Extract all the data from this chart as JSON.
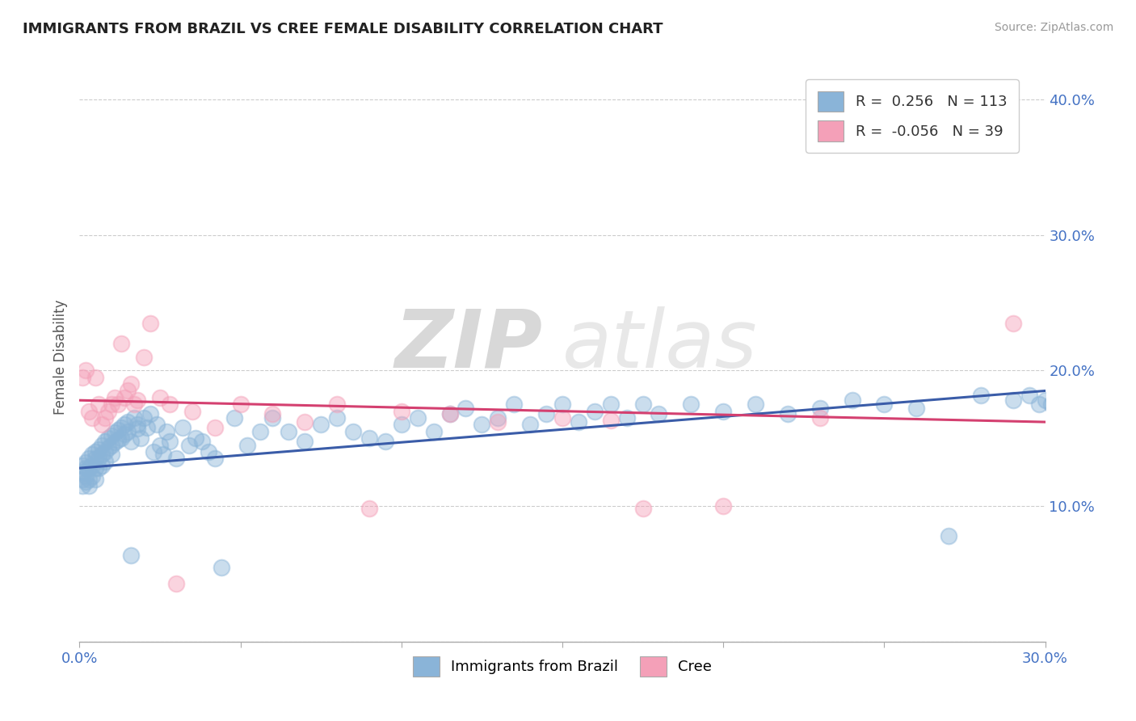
{
  "title": "IMMIGRANTS FROM BRAZIL VS CREE FEMALE DISABILITY CORRELATION CHART",
  "source": "Source: ZipAtlas.com",
  "ylabel_label": "Female Disability",
  "xlim": [
    0.0,
    0.3
  ],
  "ylim": [
    0.0,
    0.42
  ],
  "x_ticks": [
    0.0,
    0.05,
    0.1,
    0.15,
    0.2,
    0.25,
    0.3
  ],
  "y_ticks": [
    0.0,
    0.1,
    0.2,
    0.3,
    0.4
  ],
  "brazil_R": 0.256,
  "brazil_N": 113,
  "cree_R": -0.056,
  "cree_N": 39,
  "brazil_color": "#8ab4d8",
  "cree_color": "#f4a0b8",
  "brazil_line_color": "#3a5ca8",
  "cree_line_color": "#d44070",
  "grid_color": "#cccccc",
  "background_color": "#ffffff",
  "watermark_zip": "ZIP",
  "watermark_atlas": "atlas",
  "brazil_scatter_x": [
    0.001,
    0.001,
    0.001,
    0.001,
    0.002,
    0.002,
    0.002,
    0.002,
    0.003,
    0.003,
    0.003,
    0.003,
    0.004,
    0.004,
    0.004,
    0.005,
    0.005,
    0.005,
    0.005,
    0.006,
    0.006,
    0.006,
    0.007,
    0.007,
    0.007,
    0.008,
    0.008,
    0.008,
    0.009,
    0.009,
    0.01,
    0.01,
    0.01,
    0.011,
    0.011,
    0.012,
    0.012,
    0.013,
    0.013,
    0.014,
    0.014,
    0.015,
    0.015,
    0.016,
    0.016,
    0.017,
    0.018,
    0.018,
    0.019,
    0.02,
    0.021,
    0.022,
    0.023,
    0.024,
    0.025,
    0.026,
    0.027,
    0.028,
    0.03,
    0.032,
    0.034,
    0.036,
    0.038,
    0.04,
    0.042,
    0.044,
    0.048,
    0.052,
    0.056,
    0.06,
    0.065,
    0.07,
    0.075,
    0.08,
    0.085,
    0.09,
    0.095,
    0.1,
    0.105,
    0.11,
    0.115,
    0.12,
    0.125,
    0.13,
    0.135,
    0.14,
    0.145,
    0.15,
    0.155,
    0.16,
    0.165,
    0.17,
    0.175,
    0.18,
    0.19,
    0.2,
    0.21,
    0.22,
    0.23,
    0.24,
    0.25,
    0.26,
    0.27,
    0.28,
    0.29,
    0.295,
    0.298,
    0.3,
    0.302,
    0.305,
    0.308,
    0.31,
    0.315
  ],
  "brazil_scatter_y": [
    0.13,
    0.125,
    0.12,
    0.115,
    0.132,
    0.128,
    0.122,
    0.118,
    0.135,
    0.128,
    0.12,
    0.115,
    0.138,
    0.13,
    0.122,
    0.14,
    0.135,
    0.128,
    0.12,
    0.142,
    0.135,
    0.128,
    0.145,
    0.138,
    0.13,
    0.148,
    0.14,
    0.133,
    0.15,
    0.143,
    0.152,
    0.145,
    0.138,
    0.154,
    0.147,
    0.156,
    0.149,
    0.158,
    0.15,
    0.16,
    0.153,
    0.162,
    0.155,
    0.064,
    0.148,
    0.165,
    0.157,
    0.16,
    0.15,
    0.165,
    0.158,
    0.168,
    0.14,
    0.16,
    0.145,
    0.138,
    0.155,
    0.148,
    0.135,
    0.158,
    0.145,
    0.15,
    0.148,
    0.14,
    0.135,
    0.055,
    0.165,
    0.145,
    0.155,
    0.165,
    0.155,
    0.148,
    0.16,
    0.165,
    0.155,
    0.15,
    0.148,
    0.16,
    0.165,
    0.155,
    0.168,
    0.172,
    0.16,
    0.165,
    0.175,
    0.16,
    0.168,
    0.175,
    0.162,
    0.17,
    0.175,
    0.165,
    0.175,
    0.168,
    0.175,
    0.17,
    0.175,
    0.168,
    0.172,
    0.178,
    0.175,
    0.172,
    0.078,
    0.182,
    0.178,
    0.182,
    0.175,
    0.178,
    0.175,
    0.178,
    0.182,
    0.178,
    0.18
  ],
  "cree_scatter_x": [
    0.001,
    0.002,
    0.003,
    0.004,
    0.005,
    0.006,
    0.007,
    0.008,
    0.009,
    0.01,
    0.011,
    0.012,
    0.013,
    0.014,
    0.015,
    0.016,
    0.017,
    0.018,
    0.02,
    0.022,
    0.025,
    0.028,
    0.03,
    0.035,
    0.042,
    0.05,
    0.06,
    0.07,
    0.08,
    0.09,
    0.1,
    0.115,
    0.13,
    0.15,
    0.165,
    0.175,
    0.2,
    0.23,
    0.29
  ],
  "cree_scatter_y": [
    0.195,
    0.2,
    0.17,
    0.165,
    0.195,
    0.175,
    0.16,
    0.165,
    0.17,
    0.175,
    0.18,
    0.175,
    0.22,
    0.18,
    0.185,
    0.19,
    0.175,
    0.178,
    0.21,
    0.235,
    0.18,
    0.175,
    0.043,
    0.17,
    0.158,
    0.175,
    0.168,
    0.162,
    0.175,
    0.098,
    0.17,
    0.168,
    0.162,
    0.165,
    0.163,
    0.098,
    0.1,
    0.165,
    0.235
  ],
  "brazil_trend_x": [
    0.0,
    0.3
  ],
  "brazil_trend_y": [
    0.128,
    0.185
  ],
  "cree_trend_x": [
    0.0,
    0.3
  ],
  "cree_trend_y": [
    0.178,
    0.162
  ]
}
